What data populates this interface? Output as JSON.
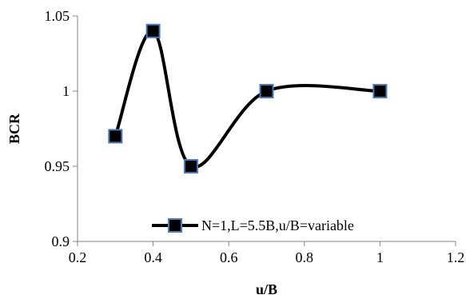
{
  "chart_data": {
    "type": "line",
    "xlabel": "u/B",
    "ylabel": "BCR",
    "xlim": [
      0.2,
      1.2
    ],
    "ylim": [
      0.9,
      1.05
    ],
    "x_ticks": [
      "0.2",
      "0.4",
      "0.6",
      "0.8",
      "1",
      "1.2"
    ],
    "y_ticks": [
      "0.9",
      "0.95",
      "1",
      "1.05"
    ],
    "grid": false,
    "legend_position": "bottom-right",
    "series": [
      {
        "name": "N=1,L=5.5B,u/B=variable",
        "x": [
          0.3,
          0.4,
          0.5,
          0.7,
          1.0
        ],
        "y": [
          0.97,
          1.04,
          0.95,
          1.0,
          1.0
        ],
        "line_color": "#000000",
        "marker": "square",
        "marker_fill": "#000000",
        "marker_edge": "#4a7ab8",
        "smooth": true
      }
    ]
  }
}
